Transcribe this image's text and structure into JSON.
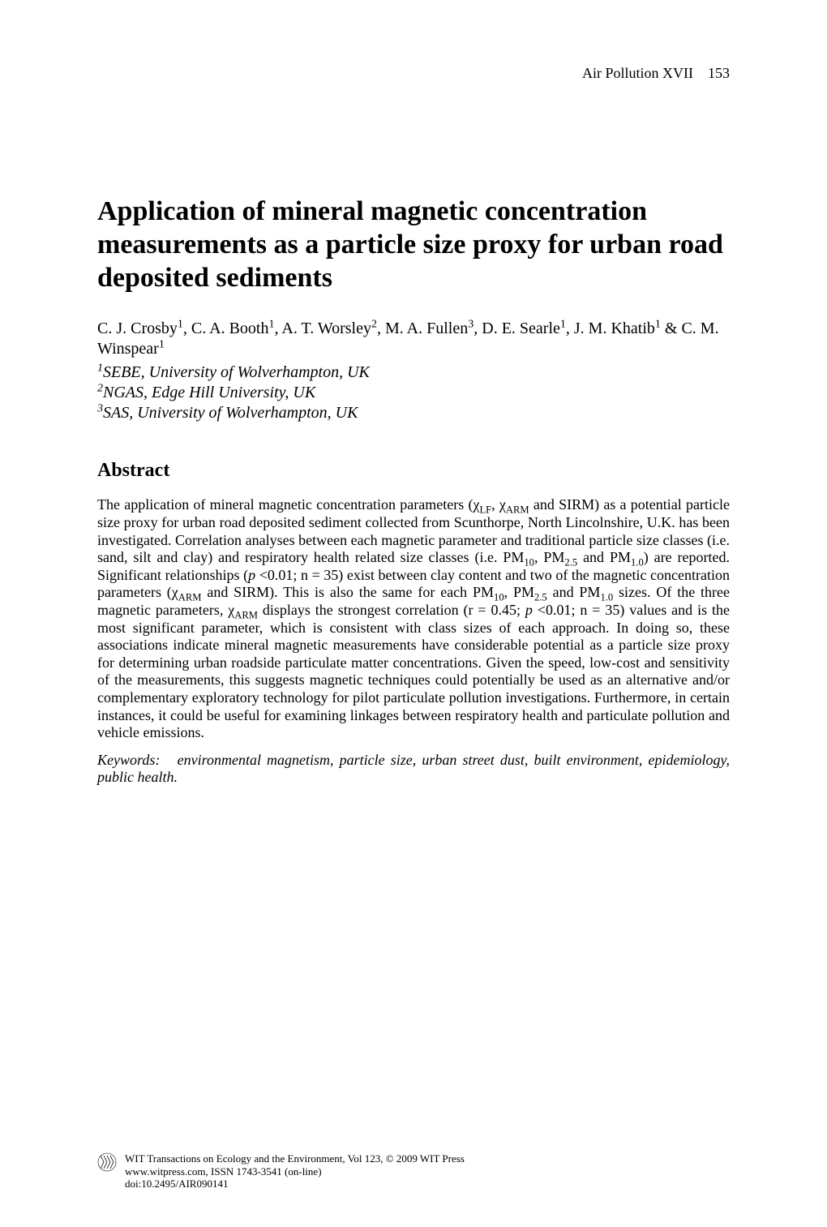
{
  "header": {
    "running_title": "Air Pollution XVII",
    "page_number": "153"
  },
  "title": "Application of mineral magnetic concentration measurements as a particle size proxy for urban road deposited sediments",
  "authors_html": "C. J. Crosby<sup>1</sup>, C. A. Booth<sup>1</sup>, A. T. Worsley<sup>2</sup>, M. A. Fullen<sup>3</sup>, D. E. Searle<sup>1</sup>, J. M. Khatib<sup>1</sup> &amp; C. M. Winspear<sup>1</sup>",
  "affiliations_html": "<sup>1</sup>SEBE, University of Wolverhampton, UK<br><sup>2</sup>NGAS, Edge Hill University, UK<br><sup>3</sup>SAS, University of Wolverhampton, UK",
  "abstract": {
    "heading": "Abstract",
    "body_html": "The application of mineral magnetic concentration parameters (χ<sub>LF</sub>, χ<sub>ARM</sub> and SIRM) as a potential particle size proxy for urban road deposited sediment collected from Scunthorpe, North Lincolnshire, U.K. has been investigated. Correlation analyses between each magnetic parameter and traditional particle size classes (i.e. sand, silt and clay) and respiratory health related size classes (i.e. PM<sub>10</sub>, PM<sub>2.5</sub> and PM<sub>1.0</sub>) are reported.  Significant relationships (<i>p</i> &lt;0.01; n = 35) exist between clay content and two of the magnetic concentration parameters (χ<sub>ARM</sub> and SIRM). This is also the same for each PM<sub>10</sub>, PM<sub>2.5</sub> and PM<sub>1.0</sub> sizes. Of the three magnetic parameters, χ<sub>ARM</sub> displays the strongest correlation (r = 0.45; <i>p</i> &lt;0.01; n = 35) values and is the most significant parameter, which is consistent with class sizes of each approach. In doing so, these associations indicate mineral magnetic measurements have considerable potential as a particle size proxy for determining urban roadside particulate matter concentrations. Given the speed, low-cost and sensitivity of the measurements, this suggests magnetic techniques could potentially be used as an alternative and/or complementary exploratory technology for pilot particulate pollution investigations. Furthermore, in certain instances, it could be useful for examining linkages between respiratory health and particulate pollution and vehicle emissions.",
    "keywords_html": "Keywords:&nbsp;&nbsp;&nbsp;environmental magnetism, particle size, urban street dust, built environment, epidemiology, public health."
  },
  "footer": {
    "line1": "WIT Transactions on Ecology and the Environment, Vol 123, © 2009 WIT Press",
    "line2": "www.witpress.com, ISSN 1743-3541 (on-line)",
    "line3": "doi:10.2495/AIR090141"
  }
}
